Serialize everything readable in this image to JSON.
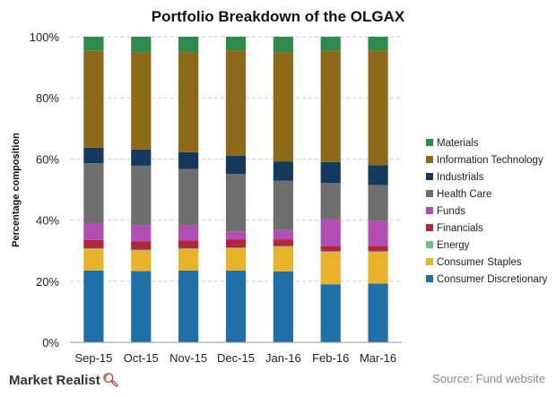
{
  "footer": {
    "brand": "Market Realist",
    "source": "Source: Fund website"
  },
  "chart_data": {
    "type": "bar",
    "stacked": true,
    "title": "Portfolio Breakdown of the OLGAX",
    "xlabel": "",
    "ylabel": "Percentage composition",
    "ylim": [
      0,
      100
    ],
    "yticks": [
      "0%",
      "20%",
      "40%",
      "60%",
      "80%",
      "100%"
    ],
    "grid": true,
    "legend_position": "right",
    "categories": [
      "Sep-15",
      "Oct-15",
      "Nov-15",
      "Dec-15",
      "Jan-16",
      "Feb-16",
      "Mar-16"
    ],
    "series": [
      {
        "name": "Consumer Discretionary",
        "color": "#1f6fa8",
        "values": [
          23.5,
          23.3,
          23.5,
          23.5,
          23.2,
          19.0,
          19.2
        ]
      },
      {
        "name": "Consumer Staples",
        "color": "#e8b32a",
        "values": [
          7.0,
          6.7,
          7.0,
          7.2,
          8.0,
          10.5,
          10.3
        ]
      },
      {
        "name": "Energy",
        "color": "#6cc08b",
        "values": [
          0.3,
          0.3,
          0.3,
          0.3,
          0.3,
          0.3,
          0.3
        ]
      },
      {
        "name": "Financials",
        "color": "#b3263a",
        "values": [
          2.7,
          2.7,
          2.5,
          2.7,
          2.2,
          1.7,
          1.8
        ]
      },
      {
        "name": "Funds",
        "color": "#b14db3",
        "values": [
          5.5,
          5.3,
          5.0,
          2.6,
          3.0,
          8.7,
          8.2
        ]
      },
      {
        "name": "Health Care",
        "color": "#6e6e6e",
        "values": [
          19.6,
          19.5,
          18.4,
          18.8,
          16.2,
          12.0,
          11.7
        ]
      },
      {
        "name": "Industrials",
        "color": "#133a5e",
        "values": [
          5.1,
          5.3,
          5.5,
          6.0,
          6.3,
          6.8,
          6.5
        ]
      },
      {
        "name": "Information Technology",
        "color": "#8c6a1a",
        "values": [
          31.7,
          31.9,
          32.8,
          34.4,
          35.8,
          36.5,
          37.5
        ]
      },
      {
        "name": "Materials",
        "color": "#2e8b4e",
        "values": [
          4.6,
          5.0,
          5.0,
          4.5,
          5.0,
          4.5,
          4.5
        ]
      }
    ]
  }
}
